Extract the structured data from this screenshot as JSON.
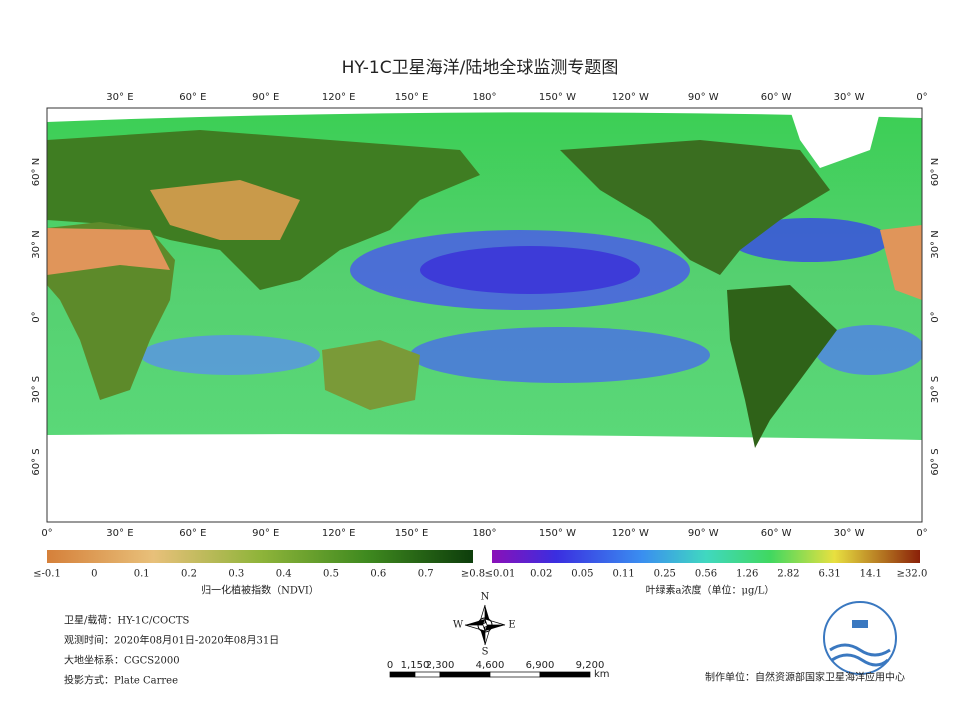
{
  "title": "HY-1C卫星海洋/陆地全球监测专题图",
  "map": {
    "top_labels": [
      "30° E",
      "60° E",
      "90° E",
      "120° E",
      "150° E",
      "180°",
      "150° W",
      "120° W",
      "90° W",
      "60° W",
      "30° W",
      "0°"
    ],
    "bottom_labels": [
      "0°",
      "30° E",
      "60° E",
      "90° E",
      "120° E",
      "150° E",
      "180°",
      "150° W",
      "120° W",
      "90° W",
      "60° W",
      "30° W",
      "0°"
    ],
    "lat_labels": [
      "60° N",
      "30° N",
      "0°",
      "30° S",
      "60° S"
    ]
  },
  "ndvi_bar": {
    "labels": [
      "≤-0.1",
      "0",
      "0.1",
      "0.2",
      "0.3",
      "0.4",
      "0.5",
      "0.6",
      "0.7",
      "≥0.8"
    ],
    "caption": "归一化植被指数（NDVI）"
  },
  "chl_bar": {
    "labels": [
      "≤0.01",
      "0.02",
      "0.05",
      "0.11",
      "0.25",
      "0.56",
      "1.26",
      "2.82",
      "6.31",
      "14.1",
      "≥32.0"
    ],
    "caption": "叶绿素a浓度（单位：μg/L）"
  },
  "info": [
    "卫星/载荷：HY-1C/COCTS",
    "观测时间：2020年08月01日-2020年08月31日",
    "大地坐标系：CGCS2000",
    "投影方式：Plate Carree"
  ],
  "compass": {
    "n": "N",
    "w": "W",
    "e": "E",
    "s": "S"
  },
  "scale": {
    "labels": [
      "0",
      "1,150",
      "2,300",
      "4,600",
      "6,900",
      "9,200"
    ],
    "unit": "km"
  },
  "producer": "制作单位：自然资源部国家卫星海洋应用中心"
}
